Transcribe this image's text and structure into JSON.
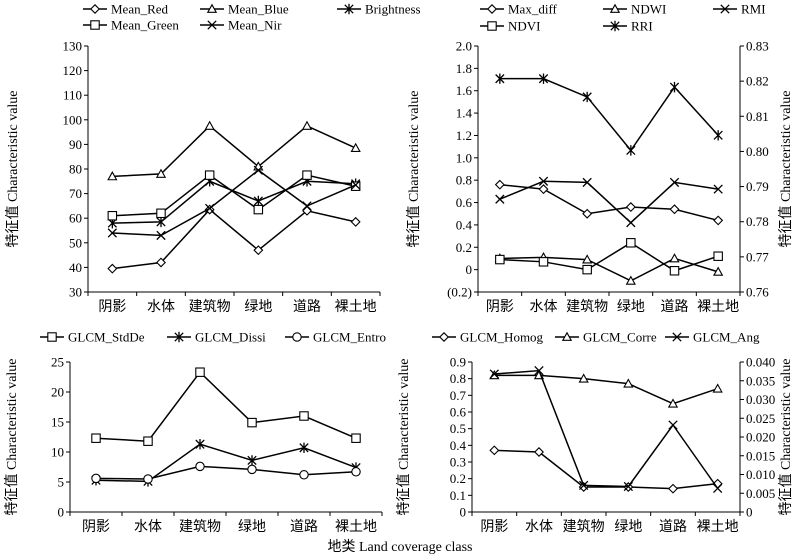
{
  "figure": {
    "xlabel": "地类 Land coverage class"
  },
  "chart_data": [
    {
      "type": "line",
      "categories": [
        "阴影",
        "水体",
        "建筑物",
        "绿地",
        "道路",
        "裸土地"
      ],
      "ylabel": "特征值 Characteristic value",
      "ylim": [
        30,
        130
      ],
      "yticks": [
        30,
        40,
        50,
        60,
        70,
        80,
        90,
        100,
        110,
        120,
        130
      ],
      "ytick_labels": [
        "30",
        "40",
        "50",
        "60",
        "70",
        "80",
        "90",
        "100",
        "110",
        "120",
        "130"
      ],
      "legend": "top",
      "series": [
        {
          "name": "Mean_Red",
          "marker": "diamond",
          "values": [
            39.5,
            42,
            63.5,
            47,
            63,
            58.5
          ]
        },
        {
          "name": "Mean_Blue",
          "marker": "triangle",
          "values": [
            77,
            78,
            97.5,
            81,
            97.5,
            88.5
          ]
        },
        {
          "name": "Brightness",
          "marker": "star",
          "values": [
            58,
            58.5,
            75,
            67,
            75,
            74
          ]
        },
        {
          "name": "Mean_Green",
          "marker": "square",
          "values": [
            61,
            62,
            77.5,
            63.5,
            77.5,
            73
          ]
        },
        {
          "name": "Mean_Nir",
          "marker": "x",
          "values": [
            54,
            53,
            64,
            79.5,
            65,
            73.5
          ]
        }
      ]
    },
    {
      "type": "line",
      "categories": [
        "阴影",
        "水体",
        "建筑物",
        "绿地",
        "道路",
        "裸土地"
      ],
      "ylabel": "特征值 Characteristic value",
      "ylabel_right": "特征值 Characteristic value",
      "ylim": [
        -0.2,
        2.0
      ],
      "yticks": [
        -0.2,
        0,
        0.2,
        0.4,
        0.6,
        0.8,
        1.0,
        1.2,
        1.4,
        1.6,
        1.8,
        2.0
      ],
      "ytick_labels": [
        "(0.2)",
        "0",
        "0.2",
        "0.4",
        "0.6",
        "0.8",
        "1.0",
        "1.2",
        "1.4",
        "1.6",
        "1.8",
        "2.0"
      ],
      "ylim_right": [
        0.76,
        0.83
      ],
      "yticks_right": [
        0.76,
        0.77,
        0.78,
        0.79,
        0.8,
        0.81,
        0.82,
        0.83
      ],
      "ytick_labels_right": [
        "0.76",
        "0.77",
        "0.78",
        "0.79",
        "0.80",
        "0.81",
        "0.82",
        "0.83"
      ],
      "legend": "top",
      "series": [
        {
          "name": "Max_diff",
          "marker": "diamond",
          "axis": "left",
          "values": [
            0.76,
            0.72,
            0.5,
            0.56,
            0.54,
            0.44
          ]
        },
        {
          "name": "NDWI",
          "marker": "triangle",
          "axis": "left",
          "values": [
            0.1,
            0.11,
            0.09,
            -0.1,
            0.1,
            -0.02
          ]
        },
        {
          "name": "RMI",
          "marker": "x",
          "axis": "left",
          "values": [
            0.63,
            0.79,
            0.78,
            0.42,
            0.78,
            0.72
          ]
        },
        {
          "name": "NDVI",
          "marker": "square",
          "axis": "left",
          "values": [
            0.09,
            0.07,
            0.0,
            0.24,
            -0.01,
            0.12
          ]
        },
        {
          "name": "RRI",
          "marker": "star",
          "axis": "right",
          "values": [
            0.8207,
            0.8207,
            0.8155,
            0.8003,
            0.8183,
            0.8046
          ]
        }
      ]
    },
    {
      "type": "line",
      "categories": [
        "阴影",
        "水体",
        "建筑物",
        "绿地",
        "道路",
        "裸土地"
      ],
      "ylabel": "特征值 Characteristic value",
      "ylim": [
        0,
        25
      ],
      "yticks": [
        0,
        5,
        10,
        15,
        20,
        25
      ],
      "ytick_labels": [
        "0",
        "5",
        "10",
        "15",
        "20",
        "25"
      ],
      "legend": "top",
      "series": [
        {
          "name": "GLCM_StdDe",
          "marker": "square",
          "values": [
            12.3,
            11.8,
            23.3,
            14.9,
            16,
            12.3
          ]
        },
        {
          "name": "GLCM_Dissi",
          "marker": "star",
          "values": [
            5.3,
            5.1,
            11.3,
            8.6,
            10.7,
            7.4
          ]
        },
        {
          "name": "GLCM_Entro",
          "marker": "circle",
          "values": [
            5.6,
            5.5,
            7.6,
            7.1,
            6.2,
            6.7
          ]
        }
      ]
    },
    {
      "type": "line",
      "categories": [
        "阴影",
        "水体",
        "建筑物",
        "绿地",
        "道路",
        "裸土地"
      ],
      "ylabel": "特征值 Characteristic value",
      "ylabel_right": "特征值 Characteristic value",
      "ylim": [
        0,
        0.9
      ],
      "yticks": [
        0,
        0.1,
        0.2,
        0.3,
        0.4,
        0.5,
        0.6,
        0.7,
        0.8,
        0.9
      ],
      "ytick_labels": [
        "0",
        "0.1",
        "0.2",
        "0.3",
        "0.4",
        "0.5",
        "0.6",
        "0.7",
        "0.8",
        "0.9"
      ],
      "ylim_right": [
        0,
        0.04
      ],
      "yticks_right": [
        0,
        0.005,
        0.01,
        0.015,
        0.02,
        0.025,
        0.03,
        0.035,
        0.04
      ],
      "ytick_labels_right": [
        "0",
        "0.005",
        "0.010",
        "0.015",
        "0.020",
        "0.025",
        "0.030",
        "0.035",
        "0.040"
      ],
      "legend": "top",
      "series": [
        {
          "name": "GLCM_Homog",
          "marker": "diamond",
          "axis": "left",
          "values": [
            0.37,
            0.36,
            0.15,
            0.15,
            0.14,
            0.17
          ]
        },
        {
          "name": "GLCM_Corre",
          "marker": "triangle",
          "axis": "left",
          "values": [
            0.82,
            0.82,
            0.8,
            0.77,
            0.65,
            0.74
          ]
        },
        {
          "name": "GLCM_Ang",
          "marker": "x",
          "axis": "right",
          "values": [
            0.0368,
            0.0377,
            0.0071,
            0.0068,
            0.0232,
            0.0063
          ]
        }
      ]
    }
  ]
}
